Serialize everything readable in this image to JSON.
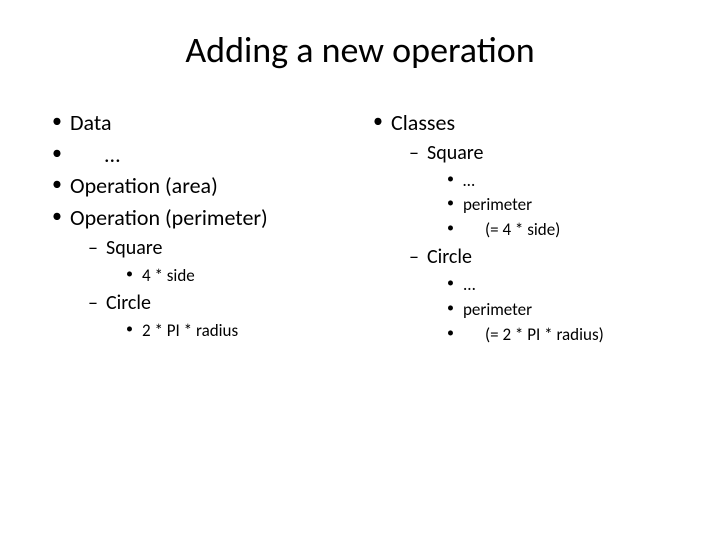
{
  "title": "Adding a new operation",
  "left": {
    "items": [
      {
        "text": "Data"
      },
      {
        "text": "...",
        "indented": true
      },
      {
        "text": "Operation (area)"
      },
      {
        "text": "Operation (perimeter)",
        "children": [
          {
            "text": "Square",
            "children": [
              {
                "text": "4 * side"
              }
            ]
          },
          {
            "text": "Circle",
            "children": [
              {
                "text": "2 * PI * radius"
              }
            ]
          }
        ]
      }
    ]
  },
  "right": {
    "items": [
      {
        "text": "Classes",
        "children": [
          {
            "text": "Square",
            "children": [
              {
                "text": "…"
              },
              {
                "text": "perimeter"
              },
              {
                "text": "(= 4 * side)",
                "indented": true
              }
            ]
          },
          {
            "text": "Circle",
            "children": [
              {
                "text": "..."
              },
              {
                "text": "perimeter"
              },
              {
                "text": "(= 2 * PI * radius)",
                "indented": true
              }
            ]
          }
        ]
      }
    ]
  },
  "style": {
    "background_color": "#ffffff",
    "text_color": "#000000",
    "title_fontsize": 36,
    "l1_fontsize": 22,
    "l2_fontsize": 20,
    "l3_fontsize": 17,
    "font_family": "Calibri"
  }
}
